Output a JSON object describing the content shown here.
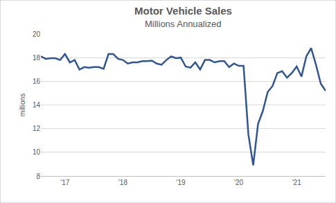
{
  "chart_data": {
    "type": "line",
    "title": "Motor Vehicle Sales",
    "subtitle": "Millions Annualized",
    "y_label": "millions",
    "categories": [
      null,
      null,
      null,
      null,
      null,
      "'17",
      null,
      null,
      null,
      null,
      null,
      null,
      null,
      null,
      null,
      null,
      null,
      "'18",
      null,
      null,
      null,
      null,
      null,
      null,
      null,
      null,
      null,
      null,
      null,
      "'19",
      null,
      null,
      null,
      null,
      null,
      null,
      null,
      null,
      null,
      null,
      null,
      "'20",
      null,
      null,
      null,
      null,
      null,
      null,
      null,
      null,
      null,
      null,
      null,
      "'21",
      null,
      null,
      null,
      null,
      null,
      null
    ],
    "values": [
      18.1,
      17.9,
      17.95,
      17.95,
      17.8,
      18.3,
      17.6,
      17.8,
      17.0,
      17.2,
      17.15,
      17.2,
      17.2,
      17.05,
      18.3,
      18.3,
      17.9,
      17.8,
      17.5,
      17.6,
      17.6,
      17.7,
      17.7,
      17.75,
      17.5,
      17.4,
      17.8,
      18.1,
      17.95,
      18.0,
      17.25,
      17.15,
      17.6,
      17.0,
      17.8,
      17.8,
      17.6,
      17.7,
      17.7,
      17.2,
      17.5,
      17.3,
      17.3,
      11.5,
      8.9,
      12.4,
      13.5,
      15.1,
      15.6,
      16.7,
      16.85,
      16.3,
      16.7,
      17.25,
      16.4,
      18.1,
      18.8,
      17.4,
      15.8,
      15.2
    ],
    "color": "#2f5597",
    "ylim": [
      8,
      20
    ],
    "yticks": [
      8,
      10,
      12,
      14,
      16,
      18,
      20
    ],
    "grid": true
  }
}
